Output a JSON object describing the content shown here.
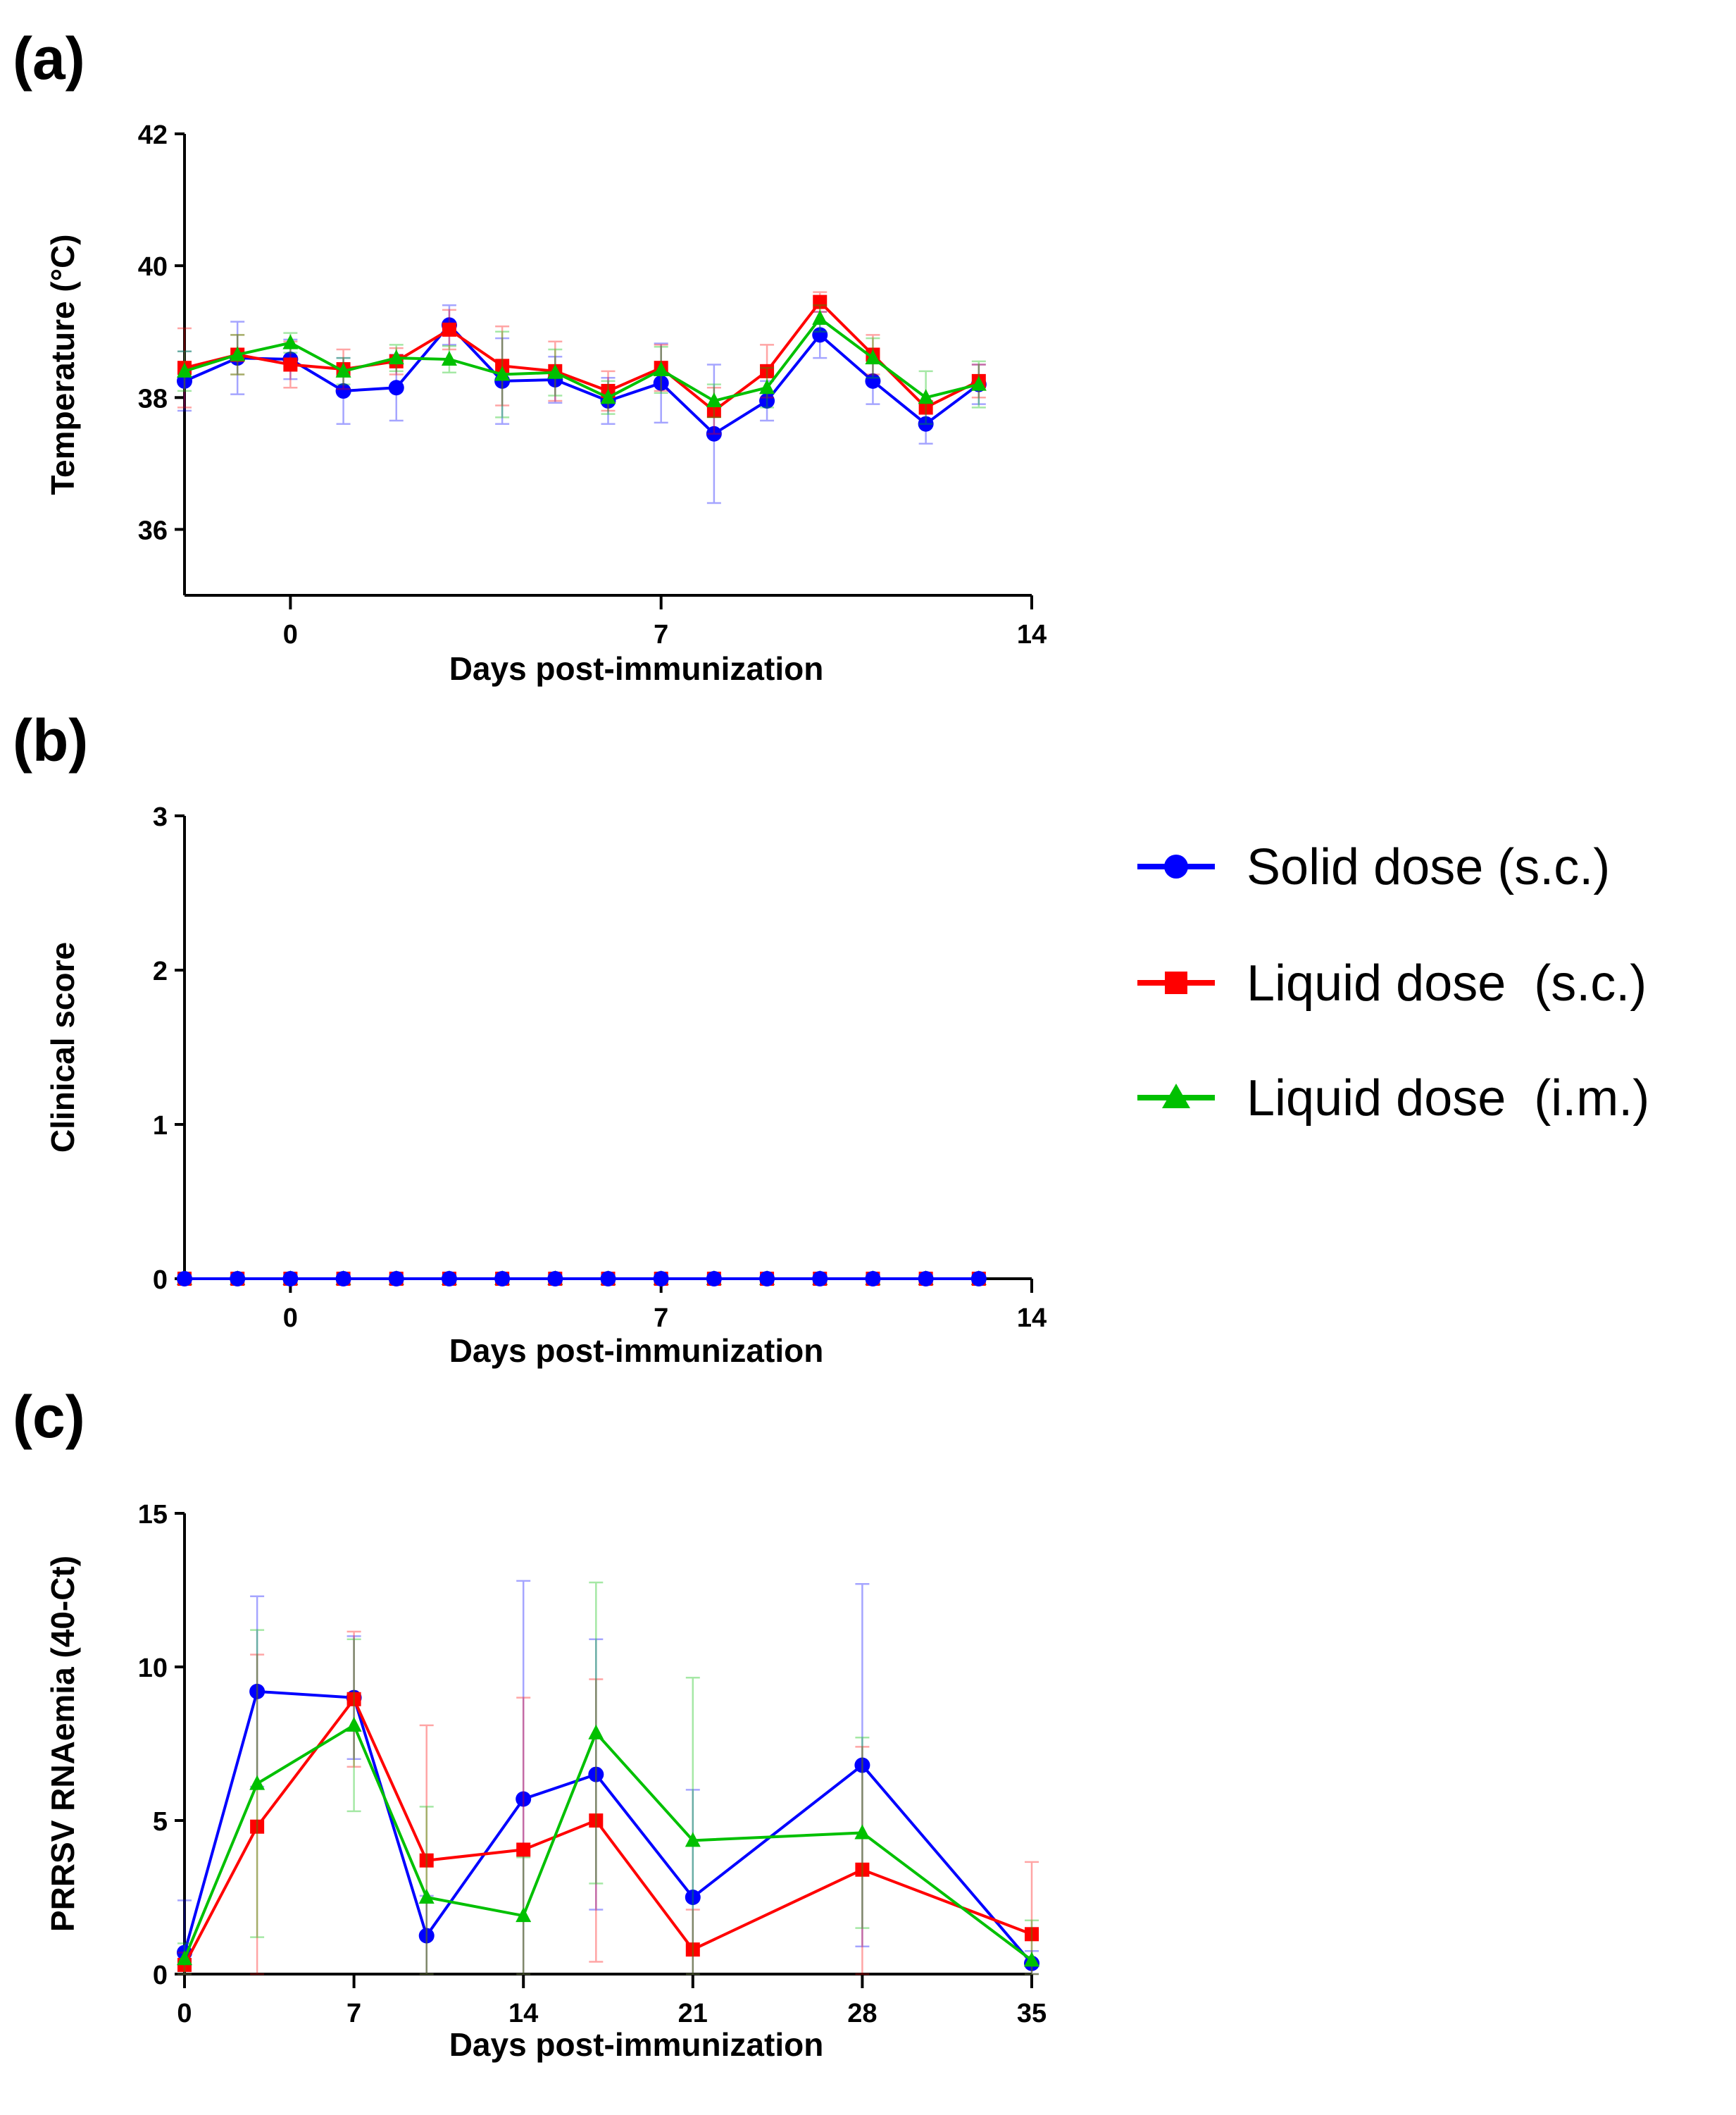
{
  "legend": {
    "entries": [
      {
        "label": "Solid dose (s.c.)",
        "color": "#0000ff",
        "marker": "circle"
      },
      {
        "label": "Liquid dose  (s.c.)",
        "color": "#ff0000",
        "marker": "square"
      },
      {
        "label": "Liquid dose  (i.m.)",
        "color": "#00c000",
        "marker": "triangle"
      }
    ]
  },
  "chart_data": [
    {
      "panel": "(a)",
      "type": "line",
      "xlabel": "Days post-immunization",
      "ylabel": "Temperature (°C)",
      "xlim": [
        -2,
        14
      ],
      "ylim": [
        35,
        42
      ],
      "xticks": [
        0,
        7,
        14
      ],
      "yticks": [
        36,
        38,
        40,
        42
      ],
      "x": [
        -2,
        -1,
        0,
        1,
        2,
        3,
        4,
        5,
        6,
        7,
        8,
        9,
        10,
        11,
        12,
        13
      ],
      "series": [
        {
          "name": "Solid dose (s.c.)",
          "color": "#0000ff",
          "marker": "circle",
          "values": [
            38.25,
            38.6,
            38.58,
            38.1,
            38.15,
            39.1,
            38.25,
            38.27,
            37.95,
            38.22,
            37.45,
            37.95,
            38.95,
            38.25,
            37.6,
            38.2
          ],
          "errors": [
            0.45,
            0.55,
            0.3,
            0.5,
            0.5,
            0.3,
            0.65,
            0.35,
            0.35,
            0.6,
            1.05,
            0.3,
            0.35,
            0.35,
            0.3,
            0.3
          ]
        },
        {
          "name": "Liquid dose  (s.c.)",
          "color": "#ff0000",
          "marker": "square",
          "values": [
            38.45,
            38.65,
            38.5,
            38.43,
            38.55,
            39.03,
            38.48,
            38.4,
            38.1,
            38.45,
            37.8,
            38.4,
            39.45,
            38.65,
            37.85,
            38.25
          ],
          "errors": [
            0.6,
            0.3,
            0.35,
            0.3,
            0.2,
            0.3,
            0.6,
            0.45,
            0.3,
            0.35,
            0.35,
            0.4,
            0.15,
            0.3,
            0.1,
            0.25
          ]
        },
        {
          "name": "Liquid dose  (i.m.)",
          "color": "#00c000",
          "marker": "triangle",
          "values": [
            38.4,
            38.65,
            38.83,
            38.4,
            38.6,
            38.58,
            38.35,
            38.38,
            38.0,
            38.42,
            37.95,
            38.15,
            39.2,
            38.6,
            38.0,
            38.2
          ],
          "errors": [
            0.3,
            0.3,
            0.15,
            0.2,
            0.2,
            0.2,
            0.65,
            0.35,
            0.25,
            0.35,
            0.25,
            0.3,
            0.2,
            0.3,
            0.4,
            0.35
          ]
        }
      ]
    },
    {
      "panel": "(b)",
      "type": "line",
      "xlabel": "Days post-immunization",
      "ylabel": "Clinical score",
      "xlim": [
        -2,
        14
      ],
      "ylim": [
        0,
        3
      ],
      "xticks": [
        0,
        7,
        14
      ],
      "yticks": [
        0,
        1,
        2,
        3
      ],
      "x": [
        -2,
        -1,
        0,
        1,
        2,
        3,
        4,
        5,
        6,
        7,
        8,
        9,
        10,
        11,
        12,
        13
      ],
      "series": [
        {
          "name": "Liquid dose  (i.m.)",
          "color": "#00c000",
          "marker": "triangle",
          "values": [
            0,
            0,
            0,
            0,
            0,
            0,
            0,
            0,
            0,
            0,
            0,
            0,
            0,
            0,
            0,
            0
          ]
        },
        {
          "name": "Liquid dose  (s.c.)",
          "color": "#ff0000",
          "marker": "square",
          "values": [
            0,
            0,
            0,
            0,
            0,
            0,
            0,
            0,
            0,
            0,
            0,
            0,
            0,
            0,
            0,
            0
          ]
        },
        {
          "name": "Solid dose (s.c.)",
          "color": "#0000ff",
          "marker": "circle",
          "values": [
            0,
            0,
            0,
            0,
            0,
            0,
            0,
            0,
            0,
            0,
            0,
            0,
            0,
            0,
            0,
            0
          ]
        }
      ]
    },
    {
      "panel": "(c)",
      "type": "line",
      "xlabel": "Days post-immunization",
      "ylabel": "PRRSV RNAemia (40-Ct)",
      "xlim": [
        0,
        35
      ],
      "ylim": [
        0,
        15
      ],
      "xticks": [
        0,
        7,
        14,
        21,
        28,
        35
      ],
      "yticks": [
        0,
        5,
        10,
        15
      ],
      "x": [
        0,
        3,
        7,
        10,
        14,
        17,
        21,
        28,
        35
      ],
      "series": [
        {
          "name": "Solid dose (s.c.)",
          "color": "#0000ff",
          "marker": "circle",
          "values": [
            0.7,
            9.2,
            9.0,
            1.25,
            5.7,
            6.5,
            2.5,
            6.8,
            0.35
          ],
          "errors": [
            1.7,
            3.1,
            2.0,
            1.3,
            7.1,
            4.4,
            3.5,
            5.9,
            0.4
          ]
        },
        {
          "name": "Liquid dose  (s.c.)",
          "color": "#ff0000",
          "marker": "square",
          "values": [
            0.3,
            4.8,
            8.95,
            3.7,
            4.05,
            5.0,
            0.8,
            3.4,
            1.3
          ],
          "errors": [
            0.4,
            5.6,
            2.2,
            4.4,
            4.95,
            4.6,
            1.3,
            4.0,
            2.35
          ]
        },
        {
          "name": "Liquid dose  (i.m.)",
          "color": "#00c000",
          "marker": "triangle",
          "values": [
            0.5,
            6.2,
            8.1,
            2.5,
            1.9,
            7.85,
            4.35,
            4.6,
            0.45
          ],
          "errors": [
            0.5,
            5.0,
            2.8,
            2.95,
            1.9,
            4.9,
            5.3,
            3.1,
            1.3
          ]
        }
      ]
    }
  ]
}
